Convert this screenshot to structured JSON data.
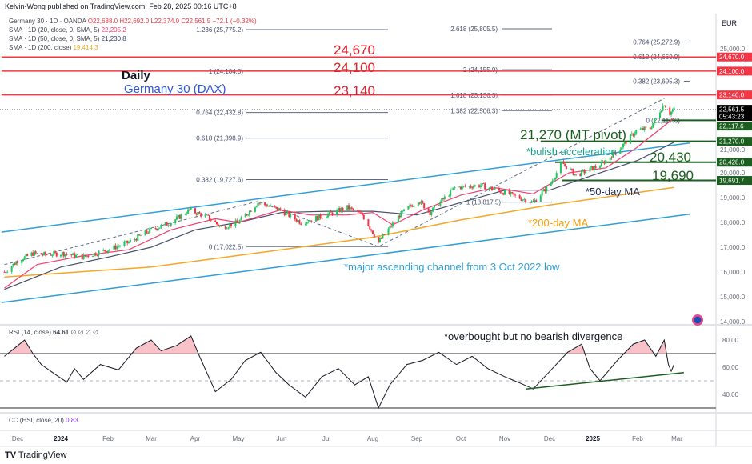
{
  "header": {
    "published": "Kelvin-Wong published on TradingView.com, Feb 28, 2025 00:16 UTC+8",
    "symbol": "Germany 30 · 1D · OANDA",
    "ohlc": {
      "o": "O22,688.0",
      "h": "H22,692.0",
      "l": "L22,374.0",
      "c": "C22,561.5",
      "chg": "−72.1 (−0.32%)"
    },
    "sma20_label": "SMA · 1D (20, close, 0, SMA, 5)",
    "sma20_value": "22,205.2",
    "sma50_label": "SMA · 1D (50, close, 0, SMA, 5)",
    "sma50_value": "21,230.8",
    "sma200_label": "SMA · 1D (200, close)",
    "sma200_value": "19,414.3",
    "currency": "EUR"
  },
  "annotations": {
    "daily": "Daily",
    "title": "Germany 30 (DAX)",
    "r1": "24,670",
    "r2": "24,100",
    "r3": "23,140",
    "pivot": "21,270 (MT pivot)",
    "bullish": "*bulish acceleration",
    "s1": "20,430",
    "s2": "19,690",
    "ma50": "*50-day MA",
    "ma200": "*200-day MA",
    "channel": "*major ascending channel from 3 Oct 2022 low",
    "rsi_note": "*overbought but no bearish divergence"
  },
  "rsi_pane": {
    "label": "RSI (14, close)",
    "value": "64.61",
    "extra": "∅ ∅ ∅ ∅",
    "ticks": [
      "80.00",
      "60.00",
      "40.00"
    ]
  },
  "cc_pane": {
    "label": "CC (HSI, close, 20)",
    "value": "0.83"
  },
  "footer": {
    "brand": "TradingView"
  },
  "colors": {
    "up": "#26a69a",
    "candle_up": "#22c55e",
    "down": "#f23645",
    "sma20": "#f23e6d",
    "sma50": "#434e6b",
    "sma200": "#f5a623",
    "channel": "#2f9fd6",
    "resistance": "#f23645",
    "support": "#1b5e20",
    "rsi": "#131722"
  },
  "chart_data": {
    "type": "candlestick",
    "price_axis": {
      "range": [
        13900,
        25900
      ],
      "ticks": [
        "25,000.0",
        "21,000.0",
        "20,000.0",
        "19,000.0",
        "18,000.0",
        "17,000.0",
        "16,000.0",
        "15,000.0",
        "14,000.0"
      ]
    },
    "time_axis": {
      "ticks": [
        "Dec",
        "2024",
        "Feb",
        "Mar",
        "Apr",
        "May",
        "Jun",
        "Jul",
        "Aug",
        "Sep",
        "Oct",
        "Nov",
        "Dec",
        "2025",
        "Feb",
        "Mar"
      ]
    },
    "price_tags": [
      {
        "label": "24,670.0",
        "kind": "resistance",
        "value": 24670
      },
      {
        "label": "24,100.0",
        "kind": "resistance",
        "value": 24100
      },
      {
        "label": "23,140.0",
        "kind": "resistance",
        "value": 23140
      },
      {
        "label": "22,561.5",
        "sub": "05:43:23",
        "kind": "last",
        "value": 22561.5
      },
      {
        "label": "22,117.6",
        "kind": "support",
        "value": 22117.6
      },
      {
        "label": "21,270.0",
        "kind": "support",
        "value": 21270
      },
      {
        "label": "20,428.0",
        "kind": "support",
        "value": 20428
      },
      {
        "label": "19,691.7",
        "kind": "support",
        "value": 19691.7
      }
    ],
    "close": [
      [
        "2023-11-22",
        16000
      ],
      [
        "2023-12-01",
        16450
      ],
      [
        "2023-12-12",
        16750
      ],
      [
        "2023-12-20",
        16700
      ],
      [
        "2024-01-02",
        16750
      ],
      [
        "2024-01-15",
        16600
      ],
      [
        "2024-02-01",
        16900
      ],
      [
        "2024-02-15",
        17200
      ],
      [
        "2024-03-01",
        17700
      ],
      [
        "2024-03-15",
        18000
      ],
      [
        "2024-03-28",
        18500
      ],
      [
        "2024-04-10",
        18200
      ],
      [
        "2024-04-19",
        17800
      ],
      [
        "2024-05-01",
        18000
      ],
      [
        "2024-05-15",
        18800
      ],
      [
        "2024-05-31",
        18500
      ],
      [
        "2024-06-14",
        18000
      ],
      [
        "2024-07-01",
        18300
      ],
      [
        "2024-07-15",
        18600
      ],
      [
        "2024-07-25",
        18300
      ],
      [
        "2024-08-05",
        17200
      ],
      [
        "2024-08-20",
        18300
      ],
      [
        "2024-09-02",
        18900
      ],
      [
        "2024-09-10",
        18400
      ],
      [
        "2024-09-27",
        19400
      ],
      [
        "2024-10-15",
        19500
      ],
      [
        "2024-11-01",
        19200
      ],
      [
        "2024-11-20",
        18800
      ],
      [
        "2024-12-02",
        19600
      ],
      [
        "2024-12-10",
        20400
      ],
      [
        "2024-12-20",
        19900
      ],
      [
        "2025-01-06",
        20300
      ],
      [
        "2025-01-20",
        21000
      ],
      [
        "2025-01-31",
        21700
      ],
      [
        "2025-02-10",
        21800
      ],
      [
        "2025-02-20",
        22800
      ],
      [
        "2025-02-24",
        22400
      ],
      [
        "2025-02-27",
        22561.5
      ]
    ],
    "sma20": [
      [
        "2023-11-22",
        15350
      ],
      [
        "2023-12-15",
        16300
      ],
      [
        "2024-01-15",
        16650
      ],
      [
        "2024-02-15",
        16900
      ],
      [
        "2024-03-15",
        17700
      ],
      [
        "2024-04-15",
        18150
      ],
      [
        "2024-05-01",
        18000
      ],
      [
        "2024-05-31",
        18500
      ],
      [
        "2024-06-20",
        18300
      ],
      [
        "2024-07-15",
        18300
      ],
      [
        "2024-08-01",
        18400
      ],
      [
        "2024-08-15",
        17900
      ],
      [
        "2024-09-05",
        18500
      ],
      [
        "2024-10-01",
        19100
      ],
      [
        "2024-10-25",
        19400
      ],
      [
        "2024-11-20",
        19150
      ],
      [
        "2024-12-15",
        20000
      ],
      [
        "2025-01-10",
        20200
      ],
      [
        "2025-01-31",
        21000
      ],
      [
        "2025-02-27",
        22205.2
      ]
    ],
    "sma50": [
      [
        "2023-11-22",
        15300
      ],
      [
        "2024-01-01",
        16200
      ],
      [
        "2024-02-01",
        16600
      ],
      [
        "2024-03-01",
        17000
      ],
      [
        "2024-04-01",
        17700
      ],
      [
        "2024-05-01",
        18000
      ],
      [
        "2024-06-01",
        18400
      ],
      [
        "2024-07-01",
        18450
      ],
      [
        "2024-08-01",
        18450
      ],
      [
        "2024-09-01",
        18300
      ],
      [
        "2024-10-01",
        18800
      ],
      [
        "2024-11-01",
        19300
      ],
      [
        "2024-12-01",
        19300
      ],
      [
        "2025-01-01",
        19900
      ],
      [
        "2025-02-01",
        20500
      ],
      [
        "2025-02-27",
        21230.8
      ]
    ],
    "sma200": [
      [
        "2023-11-22",
        15800
      ],
      [
        "2024-03-01",
        16200
      ],
      [
        "2024-06-01",
        16900
      ],
      [
        "2024-08-01",
        17400
      ],
      [
        "2024-10-01",
        18100
      ],
      [
        "2024-12-01",
        18700
      ],
      [
        "2025-02-27",
        19414.3
      ]
    ],
    "channel_upper": [
      [
        "2023-11-20",
        17610
      ],
      [
        "2025-03-10",
        21200
      ]
    ],
    "channel_lower": [
      [
        "2023-11-20",
        14770
      ],
      [
        "2025-03-10",
        18330
      ]
    ],
    "wave": [
      [
        "2023-11-22",
        16300
      ],
      [
        "2024-05-15",
        18850
      ],
      [
        "2024-08-05",
        17022.5
      ],
      [
        "2025-02-20",
        23000
      ]
    ],
    "horizontal_levels": [
      {
        "value": 24670,
        "kind": "resistance",
        "from": "2023-11-20"
      },
      {
        "value": 24100,
        "kind": "resistance",
        "from": "2023-11-20"
      },
      {
        "value": 23140,
        "kind": "resistance",
        "from": "2023-11-20"
      },
      {
        "value": 22117.6,
        "kind": "support",
        "from": "2025-02-18"
      },
      {
        "value": 21270,
        "kind": "support",
        "from": "2024-11-25"
      },
      {
        "value": 20428,
        "kind": "support",
        "from": "2024-12-05"
      },
      {
        "value": 19691.7,
        "kind": "support",
        "from": "2024-12-10"
      }
    ],
    "fib_retracement": [
      {
        "label": "1.236 (25,775.2)",
        "value": 25775.2
      },
      {
        "label": "1 (24,104.0)",
        "value": 24104.0
      },
      {
        "label": "0.764 (22,432.8)",
        "value": 22432.8
      },
      {
        "label": "0.618 (21,398.9)",
        "value": 21398.9
      },
      {
        "label": "0.382 (19,727.6)",
        "value": 19727.6
      },
      {
        "label": "0 (17,022.5)",
        "value": 17022.5
      }
    ],
    "fib_extension": [
      {
        "label": "2.618 (25,805.5)",
        "value": 25805.5
      },
      {
        "label": "2 (24,155.9)",
        "value": 24155.9
      },
      {
        "label": "1.618 (23,136.3)",
        "value": 23136.3
      },
      {
        "label": "1.382 (22,506.3)",
        "value": 22506.3
      }
    ],
    "fib_right": [
      {
        "label": "0.764 (25,272.9)",
        "value": 25272.9
      },
      {
        "label": "0.618 (24,669.9)",
        "value": 24669.9
      },
      {
        "label": "0.382 (23,695.3)",
        "value": 23695.3
      },
      {
        "label": "0 (22,117.6)",
        "value": 22117.6
      }
    ],
    "fib_small": {
      "label": "1 (18,817.5)",
      "value": 18817.5
    },
    "rsi": [
      [
        "2023-11-22",
        68
      ],
      [
        "2023-11-29",
        74
      ],
      [
        "2023-12-06",
        80
      ],
      [
        "2023-12-12",
        70
      ],
      [
        "2023-12-18",
        62
      ],
      [
        "2023-12-29",
        54
      ],
      [
        "2024-01-05",
        49
      ],
      [
        "2024-01-10",
        59
      ],
      [
        "2024-01-16",
        51
      ],
      [
        "2024-01-27",
        62
      ],
      [
        "2024-02-08",
        58
      ],
      [
        "2024-02-20",
        74
      ],
      [
        "2024-03-01",
        80
      ],
      [
        "2024-03-08",
        72
      ],
      [
        "2024-03-19",
        76
      ],
      [
        "2024-03-29",
        83
      ],
      [
        "2024-04-04",
        68
      ],
      [
        "2024-04-15",
        42
      ],
      [
        "2024-04-26",
        51
      ],
      [
        "2024-05-06",
        65
      ],
      [
        "2024-05-17",
        71
      ],
      [
        "2024-05-28",
        56
      ],
      [
        "2024-06-06",
        47
      ],
      [
        "2024-06-17",
        38
      ],
      [
        "2024-06-28",
        53
      ],
      [
        "2024-07-09",
        59
      ],
      [
        "2024-07-20",
        47
      ],
      [
        "2024-07-29",
        53
      ],
      [
        "2024-08-05",
        30
      ],
      [
        "2024-08-13",
        47
      ],
      [
        "2024-08-25",
        62
      ],
      [
        "2024-09-05",
        65
      ],
      [
        "2024-09-16",
        71
      ],
      [
        "2024-09-28",
        62
      ],
      [
        "2024-10-09",
        68
      ],
      [
        "2024-10-20",
        59
      ],
      [
        "2024-11-01",
        53
      ],
      [
        "2024-11-12",
        48
      ],
      [
        "2024-11-20",
        44
      ],
      [
        "2024-12-03",
        59
      ],
      [
        "2024-12-14",
        71
      ],
      [
        "2024-12-24",
        77
      ],
      [
        "2024-12-30",
        59
      ],
      [
        "2025-01-06",
        50
      ],
      [
        "2025-01-18",
        65
      ],
      [
        "2025-01-29",
        77
      ],
      [
        "2025-02-06",
        80
      ],
      [
        "2025-02-14",
        68
      ],
      [
        "2025-02-20",
        80
      ],
      [
        "2025-02-23",
        62
      ],
      [
        "2025-02-25",
        57
      ],
      [
        "2025-02-27",
        62
      ]
    ],
    "rsi_levels": {
      "upper": 70,
      "middle": 50,
      "lower": 30,
      "range": [
        20,
        92
      ]
    },
    "rsi_trendline": [
      [
        "2024-11-15",
        44
      ],
      [
        "2025-03-06",
        56
      ]
    ]
  }
}
